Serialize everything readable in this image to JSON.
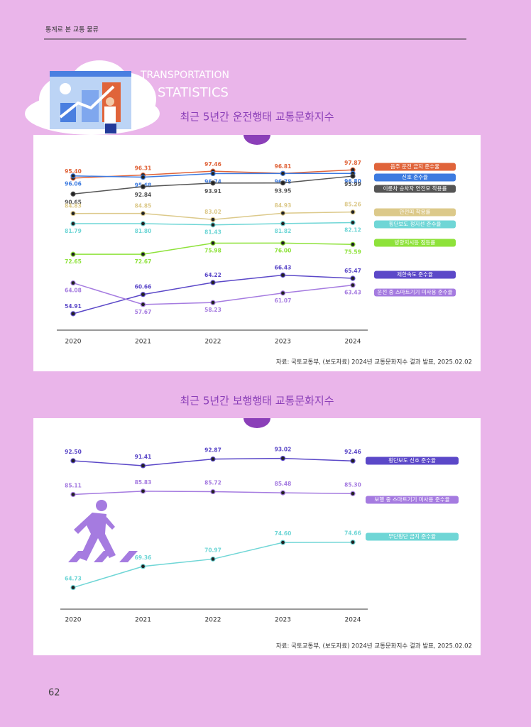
{
  "header": {
    "title": "통계로 본 교통 물류"
  },
  "hero": {
    "line1": "TRANSPORTATION",
    "line2": "STATISTICS"
  },
  "page_number": "62",
  "chart_data": [
    {
      "type": "line",
      "title": "최근 5년간 운전행태 교통문화지수",
      "source": "자료: 국토교통부, (보도자료) 2024년 교통문화지수 결과 발표, 2025.02.02",
      "categories": [
        "2020",
        "2021",
        "2022",
        "2023",
        "2024"
      ],
      "ylim": [
        50,
        103
      ],
      "series": [
        {
          "name": "음주 운전 금지 준수율",
          "color": "#e0643a",
          "values": [
            95.4,
            96.31,
            97.46,
            96.81,
            97.87
          ],
          "value_labels": [
            "95.40",
            "96.31",
            "97.46",
            "96.81",
            "97.87"
          ]
        },
        {
          "name": "신호 준수율",
          "color": "#3d7be0",
          "values": [
            96.06,
            95.68,
            96.74,
            96.78,
            96.8
          ],
          "value_labels": [
            "96.06",
            "95.68",
            "96.74",
            "96.78",
            "96.80"
          ]
        },
        {
          "name": "이륜차 승차자 안전모 착용률",
          "color": "#555555",
          "values": [
            90.65,
            92.84,
            93.91,
            93.95,
            95.99
          ],
          "value_labels": [
            "90.65",
            "92.84",
            "93.91",
            "93.95",
            "95.99"
          ]
        },
        {
          "name": "안전띠 착용률",
          "color": "#dcc98a",
          "values": [
            84.83,
            84.85,
            83.02,
            84.93,
            85.26
          ],
          "value_labels": [
            "84.83",
            "84.85",
            "83.02",
            "84.93",
            "85.26"
          ]
        },
        {
          "name": "횡단보도 정지선 준수율",
          "color": "#6fd6d6",
          "values": [
            81.79,
            81.8,
            81.43,
            81.82,
            82.12
          ],
          "value_labels": [
            "81.79",
            "81.80",
            "81.43",
            "81.82",
            "82.12"
          ]
        },
        {
          "name": "방향지시등 점등률",
          "color": "#8ee23a",
          "values": [
            72.65,
            72.67,
            75.98,
            76.0,
            75.59
          ],
          "value_labels": [
            "72.65",
            "72.67",
            "75.98",
            "76.00",
            "75.59"
          ]
        },
        {
          "name": "제한속도 준수율",
          "color": "#5b48c8",
          "values": [
            54.91,
            60.66,
            64.22,
            66.43,
            65.47
          ],
          "value_labels": [
            "54.91",
            "60.66",
            "64.22",
            "66.43",
            "65.47"
          ]
        },
        {
          "name": "운전 중 스마트기기 미사용 준수율",
          "color": "#a57be0",
          "values": [
            64.08,
            57.67,
            58.23,
            61.07,
            63.43
          ],
          "value_labels": [
            "64.08",
            "57.67",
            "58.23",
            "61.07",
            "63.43"
          ]
        }
      ]
    },
    {
      "type": "line",
      "title": "최근 5년간 보행행태 교통문화지수",
      "source": "자료: 국토교통부, (보도자료) 2024년 교통문화지수 결과 발표, 2025.02.02",
      "categories": [
        "2020",
        "2021",
        "2022",
        "2023",
        "2024"
      ],
      "ylim": [
        60,
        97
      ],
      "series": [
        {
          "name": "횡단보도 신호 준수율",
          "color": "#5b48c8",
          "values": [
            92.5,
            91.41,
            92.87,
            93.02,
            92.46
          ],
          "value_labels": [
            "92.50",
            "91.41",
            "92.87",
            "93.02",
            "92.46"
          ]
        },
        {
          "name": "보행 중 스마트기기 미사용 준수율",
          "color": "#a57be0",
          "values": [
            85.11,
            85.83,
            85.72,
            85.48,
            85.3
          ],
          "value_labels": [
            "85.11",
            "85.83",
            "85.72",
            "85.48",
            "85.30"
          ]
        },
        {
          "name": "무단횡단 금지 준수율",
          "color": "#6fd6d6",
          "values": [
            64.73,
            69.36,
            70.97,
            74.6,
            74.66
          ],
          "value_labels": [
            "64.73",
            "69.36",
            "70.97",
            "74.60",
            "74.66"
          ]
        }
      ]
    }
  ]
}
